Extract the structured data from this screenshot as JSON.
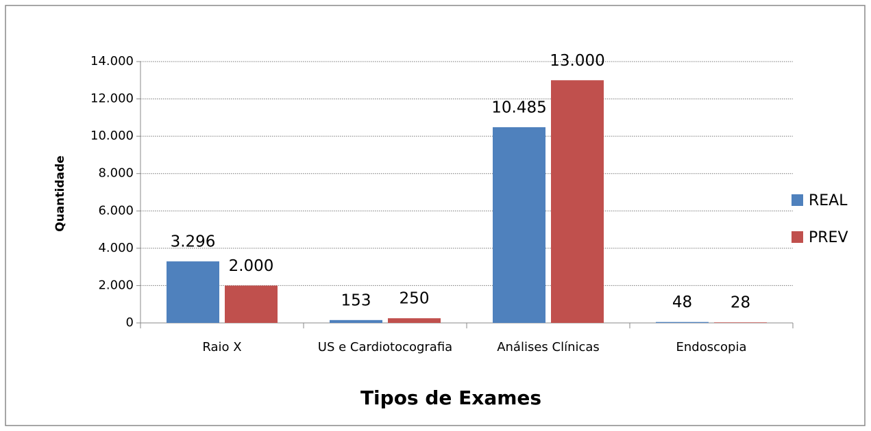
{
  "chart_data": {
    "type": "bar",
    "categories": [
      "Raio X",
      "US e Cardiotocografia",
      "Análises Clínicas",
      "Endoscopia"
    ],
    "series": [
      {
        "name": "REAL",
        "color": "#4f81bd",
        "values": [
          3296,
          153,
          10485,
          48
        ],
        "value_labels": [
          "3.296",
          "153",
          "10.485",
          "48"
        ]
      },
      {
        "name": "PREV",
        "color": "#c0504d",
        "values": [
          2000,
          250,
          13000,
          28
        ],
        "value_labels": [
          "2.000",
          "250",
          "13.000",
          "28"
        ]
      }
    ],
    "x_label": "Tipos de Exames",
    "y_label": "Quantidade",
    "ylim": [
      0,
      14000
    ],
    "yticks": [
      0,
      {
        "value": 2000,
        "label": "2.000"
      },
      {
        "value": 4000,
        "label": "4.000"
      },
      {
        "value": 6000,
        "label": "6.000"
      },
      {
        "value": 8000,
        "label": "8.000"
      },
      {
        "value": 10000,
        "label": "10.000"
      },
      {
        "value": 12000,
        "label": "12.000"
      },
      {
        "value": 14000,
        "label": "14.000"
      }
    ],
    "grid": true,
    "legend": "right"
  }
}
